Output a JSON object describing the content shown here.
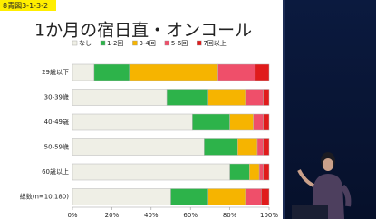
{
  "slide_label": "8青図3-1-3-2",
  "chart_data": {
    "type": "bar",
    "orientation": "horizontal",
    "stacked": true,
    "title": "1か月の宿日直・オンコール",
    "legend": "top",
    "categories": [
      "29歳以下",
      "30-39歳",
      "40-49歳",
      "50-59歳",
      "60歳以上",
      "総数(n=10,180)"
    ],
    "series": [
      {
        "name": "なし",
        "color": "#efefe6",
        "values": [
          11,
          48,
          61,
          67,
          80,
          50
        ]
      },
      {
        "name": "1-2回",
        "color": "#2db34a",
        "values": [
          18,
          21,
          19,
          17,
          10,
          19
        ]
      },
      {
        "name": "3-4回",
        "color": "#f6b400",
        "values": [
          45,
          19,
          12,
          10,
          5,
          19
        ]
      },
      {
        "name": "5-6回",
        "color": "#ef4f6a",
        "values": [
          19,
          9,
          5,
          3,
          2,
          8
        ]
      },
      {
        "name": "7回以上",
        "color": "#e01b1b",
        "values": [
          7,
          3,
          3,
          3,
          3,
          4
        ]
      }
    ],
    "xlim": [
      0,
      100
    ],
    "xticks": [
      {
        "value": 0,
        "label": "0%"
      },
      {
        "value": 20,
        "label": "20%"
      },
      {
        "value": 40,
        "label": "40%"
      },
      {
        "value": 60,
        "label": "60%"
      },
      {
        "value": 80,
        "label": "80%"
      },
      {
        "value": 100,
        "label": "100%"
      }
    ]
  }
}
